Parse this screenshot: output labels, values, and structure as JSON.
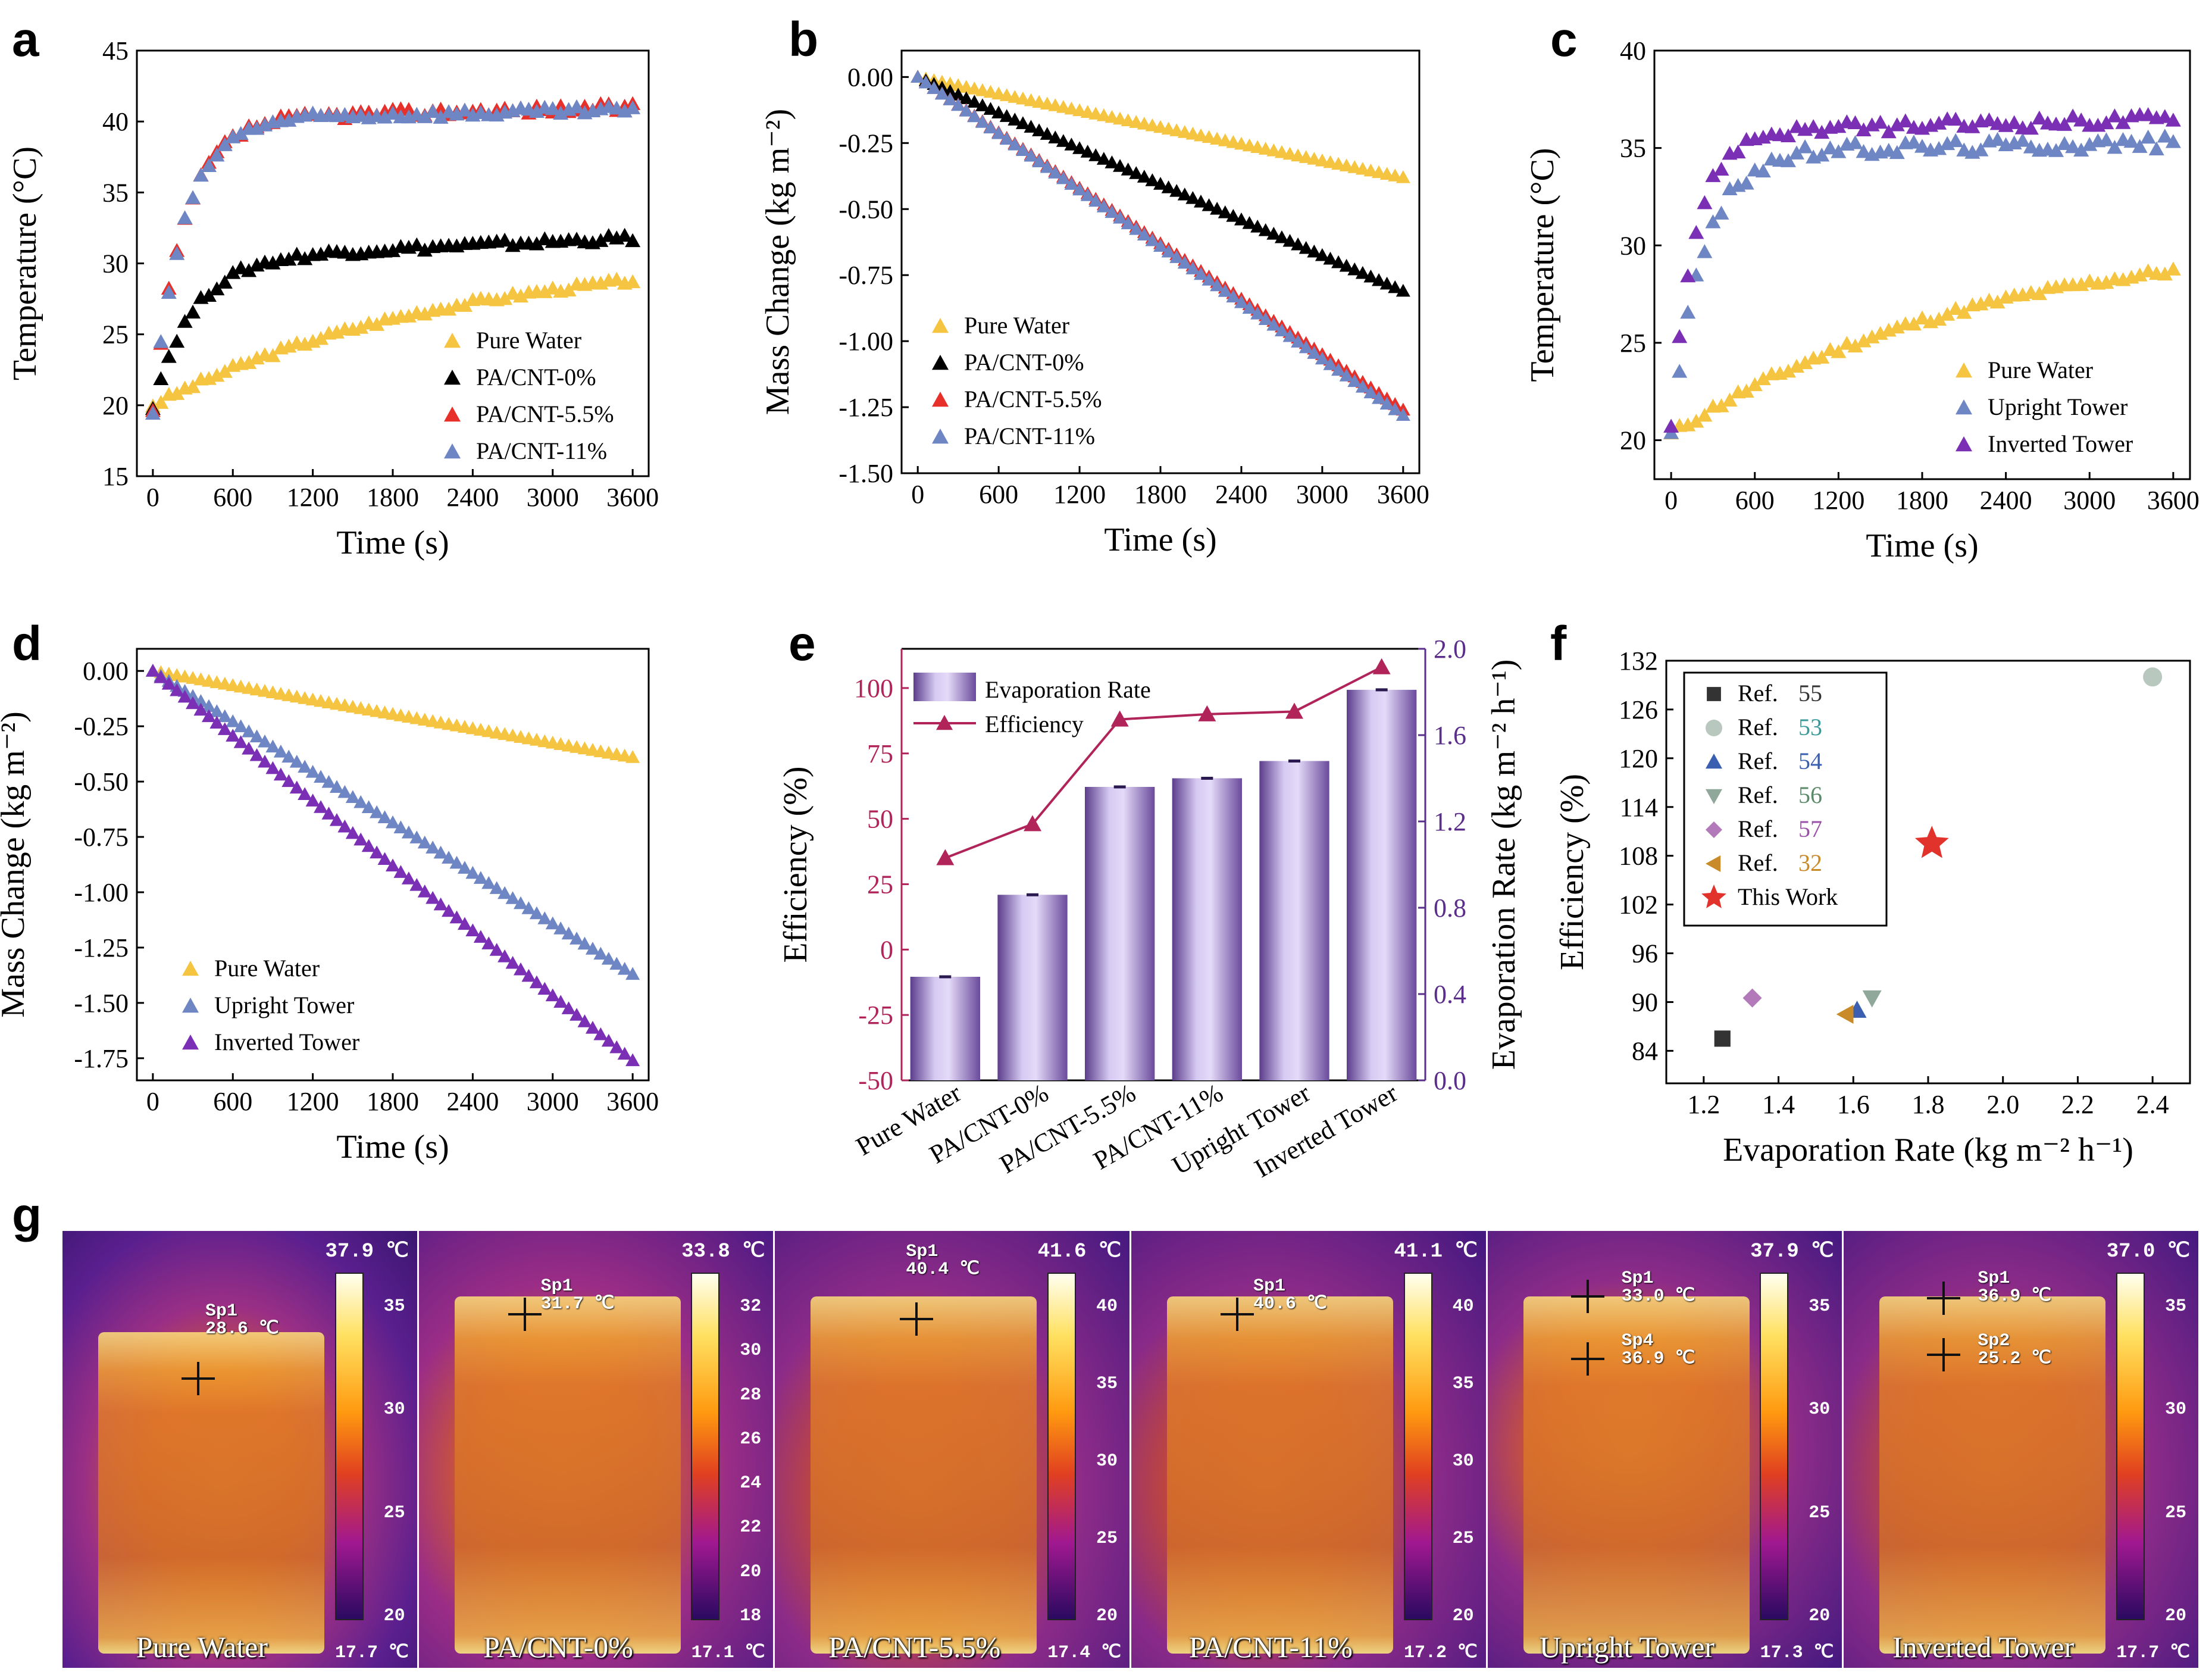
{
  "panel_letters": {
    "a": "a",
    "b": "b",
    "c": "c",
    "d": "d",
    "e": "e",
    "f": "f",
    "g": "g"
  },
  "chart_data": [
    {
      "id": "a",
      "type": "scatter",
      "xlabel": "Time (s)",
      "ylabel": "Temperature (°C)",
      "xlim": [
        -120,
        3720
      ],
      "ylim": [
        15,
        45
      ],
      "xticks": [
        0,
        600,
        1200,
        1800,
        2400,
        3000,
        3600
      ],
      "yticks": [
        15,
        20,
        25,
        30,
        35,
        40,
        45
      ],
      "legend": "bottom-right",
      "series": [
        {
          "name": "Pure Water",
          "color": "#f5c542",
          "start": 20,
          "end": 28.8,
          "k": 0,
          "noise": 0.2
        },
        {
          "name": "PA/CNT-0%",
          "color": "#000000",
          "start": 20,
          "plateau": 30.3,
          "rise_end": 31.8,
          "k": 300,
          "noise": 0.25
        },
        {
          "name": "PA/CNT-5.5%",
          "color": "#e8302a",
          "start": 19.5,
          "plateau": 40.2,
          "rise_end": 41.0,
          "k": 230,
          "noise": 0.3
        },
        {
          "name": "PA/CNT-11%",
          "color": "#6f86c4",
          "start": 19.5,
          "plateau": 40.2,
          "rise_end": 40.8,
          "k": 230,
          "noise": 0.3
        }
      ]
    },
    {
      "id": "b",
      "type": "line",
      "xlabel": "Time (s)",
      "ylabel": "Mass Change (kg m⁻²)",
      "xlim": [
        -120,
        3720
      ],
      "ylim": [
        -1.5,
        0.1
      ],
      "xticks": [
        0,
        600,
        1200,
        1800,
        2400,
        3000,
        3600
      ],
      "yticks": [
        -1.5,
        -1.25,
        -1.0,
        -0.75,
        -0.5,
        -0.25,
        0.0
      ],
      "ytick_labels": [
        "-1.50",
        "-1.25",
        "-1.00",
        "-0.75",
        "-0.50",
        "-0.25",
        "0.00"
      ],
      "legend": "bottom-left",
      "series": [
        {
          "name": "Pure Water",
          "color": "#f5c542",
          "end": -0.38,
          "curve": 0.3
        },
        {
          "name": "PA/CNT-0%",
          "color": "#000000",
          "end": -0.81,
          "curve": 0.1
        },
        {
          "name": "PA/CNT-5.5%",
          "color": "#e8302a",
          "end": -1.26,
          "curve": 0
        },
        {
          "name": "PA/CNT-11%",
          "color": "#6f86c4",
          "end": -1.28,
          "curve": 0
        }
      ]
    },
    {
      "id": "c",
      "type": "scatter",
      "xlabel": "Time (s)",
      "ylabel": "Temperature (°C)",
      "xlim": [
        -120,
        3720
      ],
      "ylim": [
        18,
        40
      ],
      "xticks": [
        0,
        600,
        1200,
        1800,
        2400,
        3000,
        3600
      ],
      "yticks": [
        20,
        25,
        30,
        35,
        40
      ],
      "legend": "bottom-right",
      "series": [
        {
          "name": "Pure Water",
          "color": "#f5c542",
          "start": 20.3,
          "end": 28.7,
          "k": 0,
          "noise": 0.2
        },
        {
          "name": "Upright Tower",
          "color": "#6f86c4",
          "start": 20.5,
          "plateau": 34.8,
          "rise_end": 35.3,
          "k": 230,
          "noise": 0.35
        },
        {
          "name": "Inverted Tower",
          "color": "#7a2fb5",
          "start": 21.0,
          "plateau": 35.8,
          "rise_end": 36.5,
          "k": 170,
          "noise": 0.3
        }
      ]
    },
    {
      "id": "d",
      "type": "line",
      "xlabel": "Time (s)",
      "ylabel": "Mass Change (kg m⁻²)",
      "xlim": [
        -120,
        3720
      ],
      "ylim": [
        -1.85,
        0.1
      ],
      "xticks": [
        0,
        600,
        1200,
        1800,
        2400,
        3000,
        3600
      ],
      "yticks": [
        -1.75,
        -1.5,
        -1.25,
        -1.0,
        -0.75,
        -0.5,
        -0.25,
        0.0
      ],
      "ytick_labels": [
        "-1.75",
        "-1.50",
        "-1.25",
        "-1.00",
        "-0.75",
        "-0.50",
        "-0.25",
        "0.00"
      ],
      "legend": "bottom-left",
      "series": [
        {
          "name": "Pure Water",
          "color": "#f5c542",
          "end": -0.39,
          "curve": 0.2
        },
        {
          "name": "Upright Tower",
          "color": "#6f86c4",
          "end": -1.37,
          "curve": 0
        },
        {
          "name": "Inverted Tower",
          "color": "#7a2fb5",
          "end": -1.76,
          "curve": 0
        }
      ]
    },
    {
      "id": "e",
      "type": "bar",
      "categories": [
        "Pure Water",
        "PA/CNT-0%",
        "PA/CNT-5.5%",
        "PA/CNT-11%",
        "Upright Tower",
        "Inverted Tower"
      ],
      "ylabel_left": "Efficiency (%)",
      "ylabel_right": "Evaporation Rate (kg m⁻² h⁻¹)",
      "ylim_left": [
        -50,
        115
      ],
      "ylim_right": [
        0,
        2.0
      ],
      "yticks_left": [
        -50,
        -25,
        0,
        25,
        50,
        75,
        100
      ],
      "yticks_right": [
        0.0,
        0.4,
        0.8,
        1.2,
        1.6,
        2.0
      ],
      "ytick_labels_right": [
        "0.0",
        "0.4",
        "0.8",
        "1.2",
        "1.6",
        "2.0"
      ],
      "legend": "top-left",
      "series": [
        {
          "name": "Evaporation Rate",
          "axis": "right",
          "color": "#b9a7e6",
          "values": [
            0.48,
            0.86,
            1.36,
            1.4,
            1.48,
            1.81
          ]
        },
        {
          "name": "Efficiency",
          "axis": "left",
          "color": "#b0245a",
          "values": [
            35,
            48,
            88,
            90,
            91,
            108
          ]
        }
      ],
      "axis_colors": {
        "left": "#b0245a",
        "right": "#5a2e8a"
      }
    },
    {
      "id": "f",
      "type": "scatter",
      "xlabel": "Evaporation Rate (kg m⁻² h⁻¹)",
      "ylabel": "Efficiency (%)",
      "xlim": [
        1.1,
        2.5
      ],
      "ylim": [
        80,
        132
      ],
      "xticks": [
        1.2,
        1.4,
        1.6,
        1.8,
        2.0,
        2.2,
        2.4
      ],
      "xtick_labels": [
        "1.2",
        "1.4",
        "1.6",
        "1.8",
        "2.0",
        "2.2",
        "2.4"
      ],
      "yticks": [
        84,
        90,
        96,
        102,
        108,
        114,
        120,
        126,
        132
      ],
      "legend": "top-left",
      "points": [
        {
          "label": "Ref.",
          "ref": "55",
          "x": 1.25,
          "y": 85.5,
          "marker": "square",
          "color": "#333333",
          "refcolor": "#333333"
        },
        {
          "label": "Ref.",
          "ref": "53",
          "x": 2.4,
          "y": 130.0,
          "marker": "circle",
          "color": "#b8c8bf",
          "refcolor": "#3a9a9a"
        },
        {
          "label": "Ref.",
          "ref": "54",
          "x": 1.61,
          "y": 89.0,
          "marker": "triangle-up",
          "color": "#3a5fb0",
          "refcolor": "#3a5fb0"
        },
        {
          "label": "Ref.",
          "ref": "56",
          "x": 1.65,
          "y": 90.5,
          "marker": "triangle-down",
          "color": "#8fa89a",
          "refcolor": "#5b8a6a"
        },
        {
          "label": "Ref.",
          "ref": "57",
          "x": 1.33,
          "y": 90.5,
          "marker": "diamond",
          "color": "#b27ab8",
          "refcolor": "#9a50a8"
        },
        {
          "label": "Ref.",
          "ref": "32",
          "x": 1.58,
          "y": 88.5,
          "marker": "triangle-left",
          "color": "#c98b2a",
          "refcolor": "#c98b2a"
        },
        {
          "label": "This Work",
          "ref": "",
          "x": 1.81,
          "y": 109.5,
          "marker": "star",
          "color": "#e2322c",
          "refcolor": "#000000"
        }
      ]
    }
  ],
  "thermal": [
    {
      "name": "Pure Water",
      "max": "37.9 ℃",
      "min": "17.7 ℃",
      "ticks": [
        "35",
        "30",
        "25",
        "20"
      ],
      "spots": [
        {
          "id": "Sp1",
          "temp": "28.6 ℃"
        }
      ]
    },
    {
      "name": "PA/CNT-0%",
      "max": "33.8 ℃",
      "min": "17.1 ℃",
      "ticks": [
        "32",
        "30",
        "28",
        "26",
        "24",
        "22",
        "20",
        "18"
      ],
      "spots": [
        {
          "id": "Sp1",
          "temp": "31.7 ℃"
        }
      ]
    },
    {
      "name": "PA/CNT-5.5%",
      "max": "41.6 ℃",
      "min": "17.4 ℃",
      "ticks": [
        "40",
        "35",
        "30",
        "25",
        "20"
      ],
      "spots": [
        {
          "id": "Sp1",
          "temp": "40.4 ℃"
        }
      ]
    },
    {
      "name": "PA/CNT-11%",
      "max": "41.1 ℃",
      "min": "17.2 ℃",
      "ticks": [
        "40",
        "35",
        "30",
        "25",
        "20"
      ],
      "spots": [
        {
          "id": "Sp1",
          "temp": "40.6 ℃"
        }
      ]
    },
    {
      "name": "Upright Tower",
      "max": "37.9 ℃",
      "min": "17.3 ℃",
      "ticks": [
        "35",
        "30",
        "25",
        "20"
      ],
      "spots": [
        {
          "id": "Sp1",
          "temp": "33.0 ℃"
        },
        {
          "id": "Sp4",
          "temp": "36.9 ℃"
        }
      ]
    },
    {
      "name": "Inverted Tower",
      "max": "37.0 ℃",
      "min": "17.7 ℃",
      "ticks": [
        "35",
        "30",
        "25",
        "20"
      ],
      "spots": [
        {
          "id": "Sp1",
          "temp": "36.9 ℃"
        },
        {
          "id": "Sp2",
          "temp": "25.2 ℃"
        }
      ]
    }
  ]
}
